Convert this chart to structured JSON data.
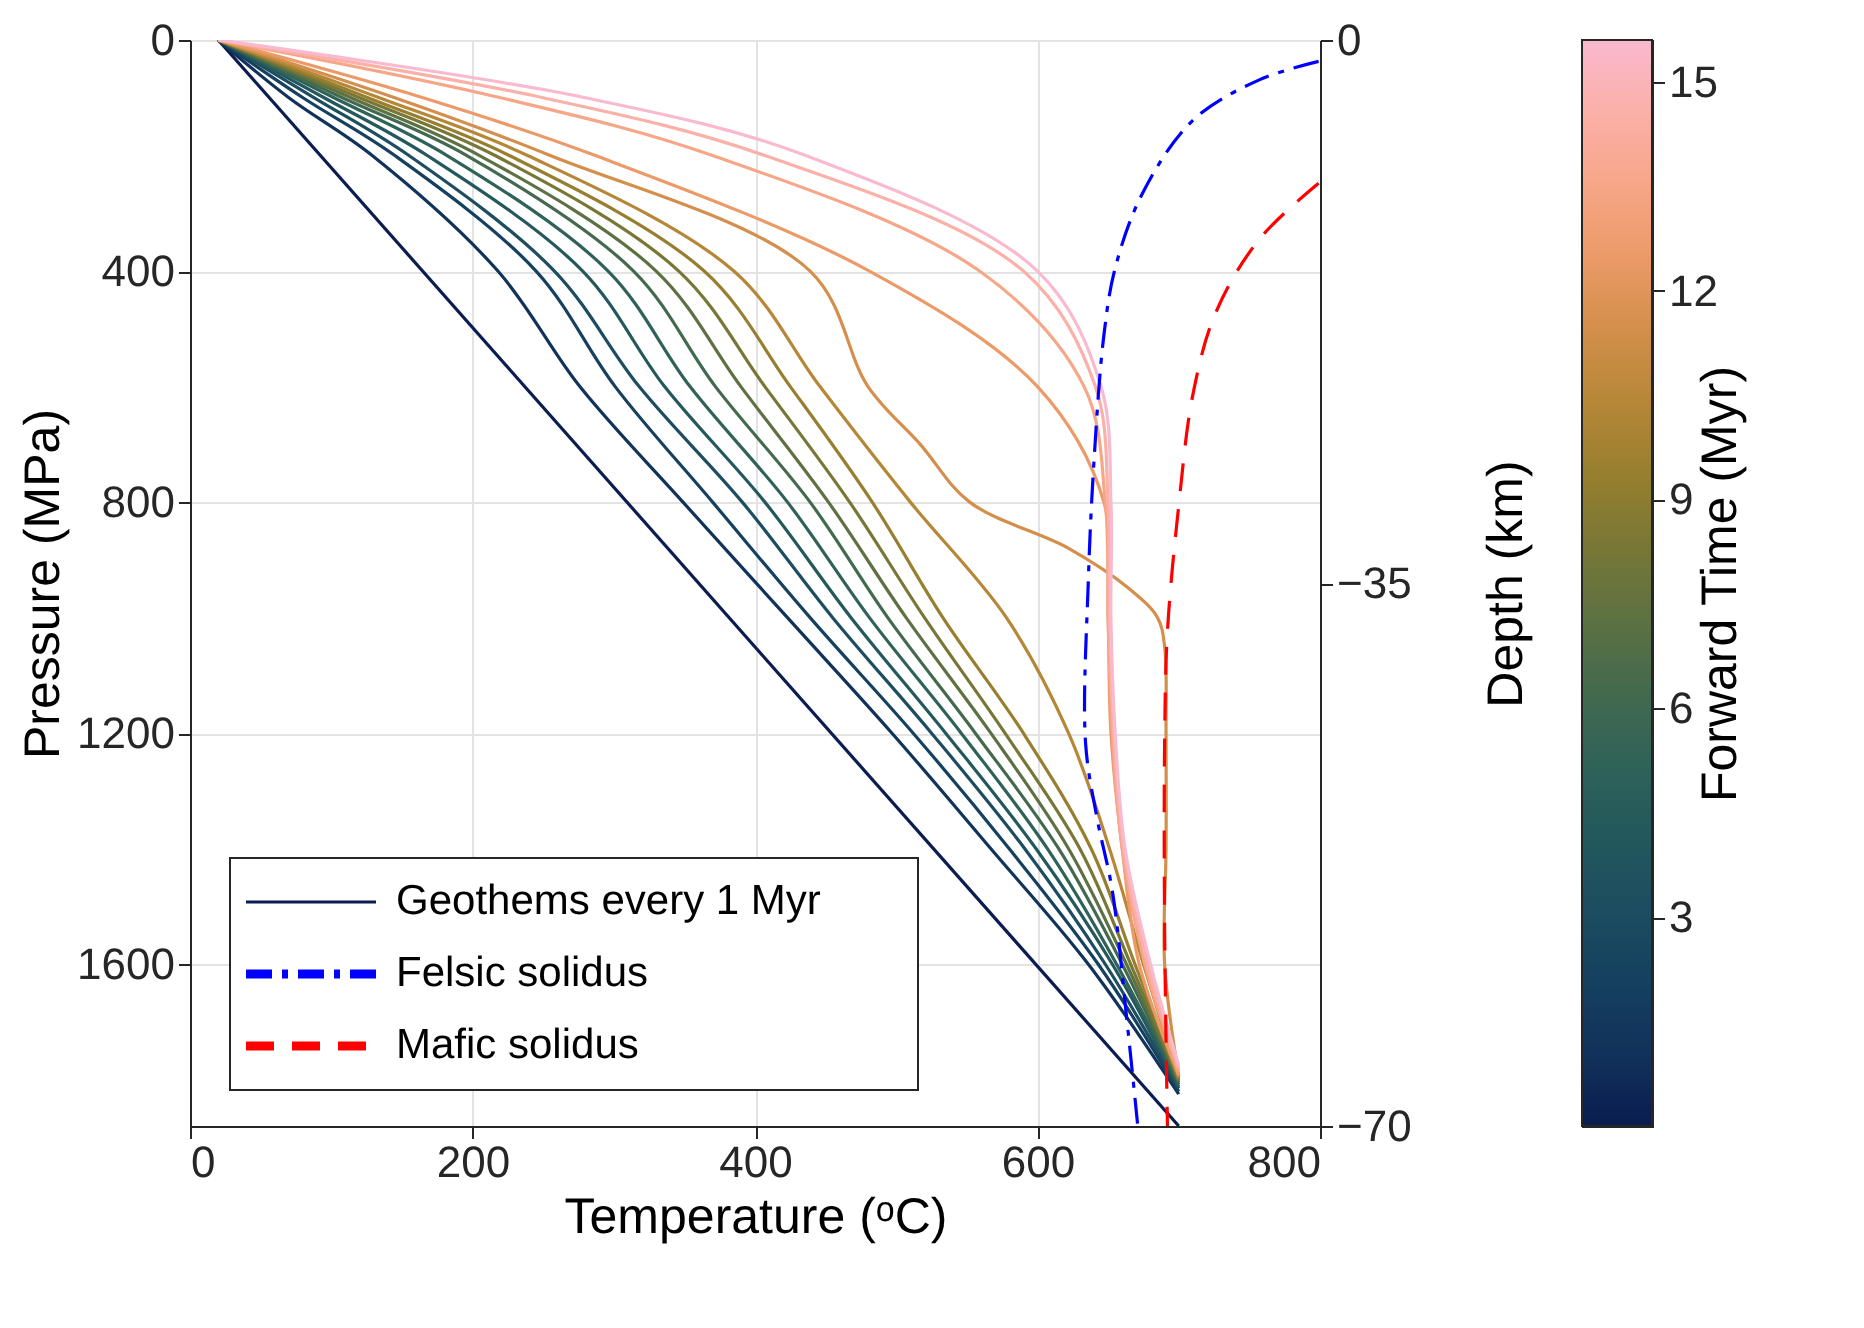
{
  "chart_data": {
    "type": "line",
    "xlabel": "Temperature (ᵒC)",
    "ylabel": "Pressure (MPa)",
    "y2label": "Depth (km)",
    "clabel": "Forward Time (Myr)",
    "xlim": [
      0,
      800
    ],
    "xticks": [
      0,
      200,
      400,
      600,
      800
    ],
    "ylim": [
      1880,
      0
    ],
    "yticks": [
      0,
      400,
      800,
      1200,
      1600
    ],
    "y2lim": [
      -70,
      0
    ],
    "y2ticks": [
      0,
      -35,
      -70
    ],
    "clim": [
      0,
      15.6
    ],
    "cticks": [
      3,
      6,
      9,
      12,
      15
    ],
    "grid": true,
    "legend": "bottom left",
    "series": [
      {
        "name": "Geothems every 1 Myr",
        "color": "#0a1c50",
        "line_style": "solid",
        "x": [
          20,
          700
        ],
        "values": [
          0,
          1880
        ]
      },
      {
        "color": "#11325a",
        "x": [
          20,
          70,
          129,
          218,
          276,
          349,
          423,
          497,
          567,
          636,
          700
        ],
        "values": [
          0,
          100,
          200,
          400,
          600,
          800,
          1000,
          1200,
          1400,
          1600,
          1825
        ]
      },
      {
        "color": "#15405f",
        "x": [
          20,
          80,
          145,
          245,
          301,
          370,
          439,
          512,
          580,
          643,
          700
        ],
        "values": [
          0,
          100,
          200,
          400,
          600,
          800,
          1000,
          1200,
          1400,
          1600,
          1820
        ]
      },
      {
        "color": "#1c4d60",
        "x": [
          20,
          88,
          155,
          258,
          318,
          391,
          455,
          525,
          591,
          648,
          700
        ],
        "values": [
          0,
          100,
          200,
          400,
          600,
          800,
          1000,
          1200,
          1400,
          1600,
          1815
        ]
      },
      {
        "color": "#23585c",
        "x": [
          20,
          95,
          168,
          278,
          336,
          407,
          468,
          535,
          599,
          653,
          700
        ],
        "values": [
          0,
          100,
          200,
          400,
          600,
          800,
          1000,
          1200,
          1400,
          1600,
          1812
        ]
      },
      {
        "color": "#2f6258",
        "x": [
          20,
          102,
          182,
          296,
          354,
          423,
          481,
          546,
          607,
          656,
          700
        ],
        "values": [
          0,
          100,
          200,
          400,
          600,
          800,
          1000,
          1200,
          1400,
          1600,
          1808
        ]
      },
      {
        "color": "#436a4e",
        "x": [
          20,
          108,
          196,
          314,
          372,
          439,
          494,
          556,
          615,
          660,
          700
        ],
        "values": [
          0,
          100,
          200,
          400,
          600,
          800,
          1000,
          1200,
          1400,
          1600,
          1805
        ]
      },
      {
        "color": "#5d7142",
        "x": [
          20,
          114,
          205,
          330,
          390,
          452,
          507,
          567,
          622,
          663,
          700
        ],
        "values": [
          0,
          100,
          200,
          400,
          600,
          800,
          1000,
          1200,
          1400,
          1600,
          1802
        ]
      },
      {
        "color": "#787736",
        "x": [
          20,
          120,
          216,
          346,
          407,
          467,
          520,
          577,
          630,
          666,
          700
        ],
        "values": [
          0,
          100,
          200,
          400,
          600,
          800,
          1000,
          1200,
          1400,
          1600,
          1800
        ]
      },
      {
        "color": "#977f2f",
        "x": [
          20,
          126,
          226,
          364,
          425,
          483,
          533,
          590,
          638,
          669,
          700
        ],
        "values": [
          0,
          100,
          200,
          400,
          600,
          800,
          1000,
          1200,
          1400,
          1600,
          1798
        ]
      },
      {
        "color": "#b68737",
        "x": [
          20,
          134,
          239,
          385,
          446,
          510,
          578,
          622,
          651,
          675,
          700
        ],
        "values": [
          0,
          100,
          200,
          400,
          600,
          800,
          1000,
          1200,
          1400,
          1600,
          1796
        ]
      },
      {
        "color": "#d38f4b",
        "x": [
          20,
          145,
          255,
          439,
          480,
          517,
          552,
          622,
          665,
          685,
          690,
          691,
          691,
          690,
          700
        ],
        "values": [
          0,
          100,
          200,
          400,
          600,
          700,
          800,
          880,
          950,
          1000,
          1050,
          1200,
          1400,
          1600,
          1794
        ]
      },
      {
        "color": "#eb9a68",
        "x": [
          20,
          165,
          287,
          481,
          600,
          647,
          650,
          652,
          660,
          672,
          700
        ],
        "values": [
          0,
          100,
          200,
          400,
          600,
          800,
          1000,
          1200,
          1400,
          1600,
          1792
        ]
      },
      {
        "color": "#f7a688",
        "x": [
          20,
          220,
          370,
          559,
          633,
          648,
          650,
          653,
          660,
          676,
          700
        ],
        "values": [
          0,
          100,
          200,
          400,
          600,
          800,
          1000,
          1200,
          1400,
          1600,
          1785
        ]
      },
      {
        "color": "#fbb0a8",
        "x": [
          20,
          250,
          407,
          590,
          641,
          650,
          651,
          654,
          661,
          678,
          700
        ],
        "values": [
          0,
          100,
          200,
          400,
          600,
          800,
          1000,
          1200,
          1400,
          1600,
          1780
        ]
      },
      {
        "color": "#f9b9cf",
        "x": [
          20,
          280,
          436,
          600,
          645,
          652,
          652,
          655,
          662,
          680,
          700
        ],
        "values": [
          0,
          100,
          200,
          400,
          600,
          800,
          1000,
          1200,
          1400,
          1600,
          1775
        ]
      },
      {
        "name": "Felsic solidus",
        "color": "#0000ff",
        "line_style": "dashdot",
        "x": [
          799,
          757,
          710,
          674,
          655,
          647,
          640,
          636,
          634,
          642,
          653,
          663,
          671
        ],
        "values": [
          37,
          69,
          139,
          267,
          395,
          511,
          729,
          935,
          1216,
          1345,
          1473,
          1690,
          1880
        ]
      },
      {
        "name": "Mafic solidus",
        "color": "#ff0000",
        "line_style": "dashed",
        "x": [
          799,
          757,
          726,
          710,
          700,
          692,
          690,
          690,
          692
        ],
        "values": [
          248,
          345,
          473,
          614,
          806,
          1024,
          1216,
          1537,
          1880
        ]
      }
    ]
  }
}
